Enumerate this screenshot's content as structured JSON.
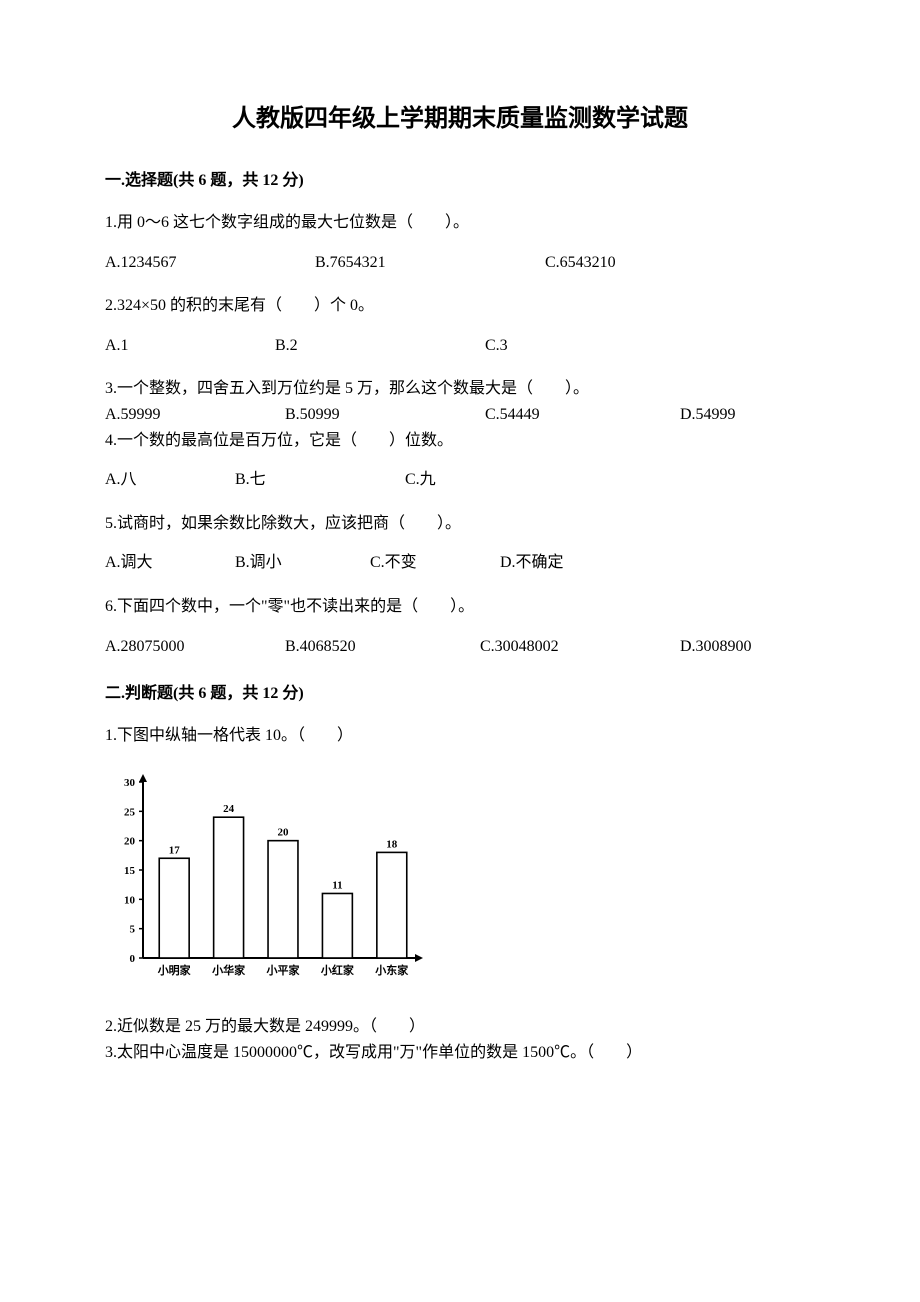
{
  "title": "人教版四年级上学期期末质量监测数学试题",
  "section1": {
    "heading": "一.选择题(共 6 题，共 12 分)",
    "q1": {
      "text": "1.用 0～6 这七个数字组成的最大七位数是（　　）。",
      "a": "A.1234567",
      "b": "B.7654321",
      "c": "C.6543210"
    },
    "q2": {
      "text": "2.324×50 的积的末尾有（　　）个 0。",
      "a": "A.1",
      "b": "B.2",
      "c": "C.3"
    },
    "q3": {
      "text": "3.一个整数，四舍五入到万位约是 5 万，那么这个数最大是（　　）。",
      "a": "A.59999",
      "b": "B.50999",
      "c": "C.54449",
      "d": "D.54999"
    },
    "q4": {
      "text": "4.一个数的最高位是百万位，它是（　　）位数。",
      "a": "A.八",
      "b": "B.七",
      "c": "C.九"
    },
    "q5": {
      "text": "5.试商时，如果余数比除数大，应该把商（　　）。",
      "a": "A.调大",
      "b": "B.调小",
      "c": "C.不变",
      "d": "D.不确定"
    },
    "q6": {
      "text": "6.下面四个数中，一个\"零\"也不读出来的是（　　）。",
      "a": "A.28075000",
      "b": "B.4068520",
      "c": "C.30048002",
      "d": "D.3008900"
    }
  },
  "section2": {
    "heading": "二.判断题(共 6 题，共 12 分)",
    "q1": {
      "text": "1.下图中纵轴一格代表 10。（　　）"
    },
    "q2": {
      "text": "2.近似数是 25 万的最大数是 249999。（　　）"
    },
    "q3": {
      "text": "3.太阳中心温度是 15000000℃，改写成用\"万\"作单位的数是 1500℃。（　　）"
    }
  },
  "chart": {
    "type": "bar",
    "categories": [
      "小明家",
      "小华家",
      "小平家",
      "小红家",
      "小东家"
    ],
    "values": [
      17,
      24,
      20,
      11,
      18
    ],
    "ytick_step": 5,
    "ylim_min": 0,
    "ylim_max": 30,
    "bar_color": "#ffffff",
    "bar_stroke": "#000000",
    "axis_color": "#000000",
    "label_fontsize": 11,
    "value_fontsize": 11,
    "tick_fontsize": 11,
    "background_color": "#ffffff",
    "y_ticks": [
      "0",
      "5",
      "10",
      "15",
      "20",
      "25",
      "30"
    ]
  }
}
